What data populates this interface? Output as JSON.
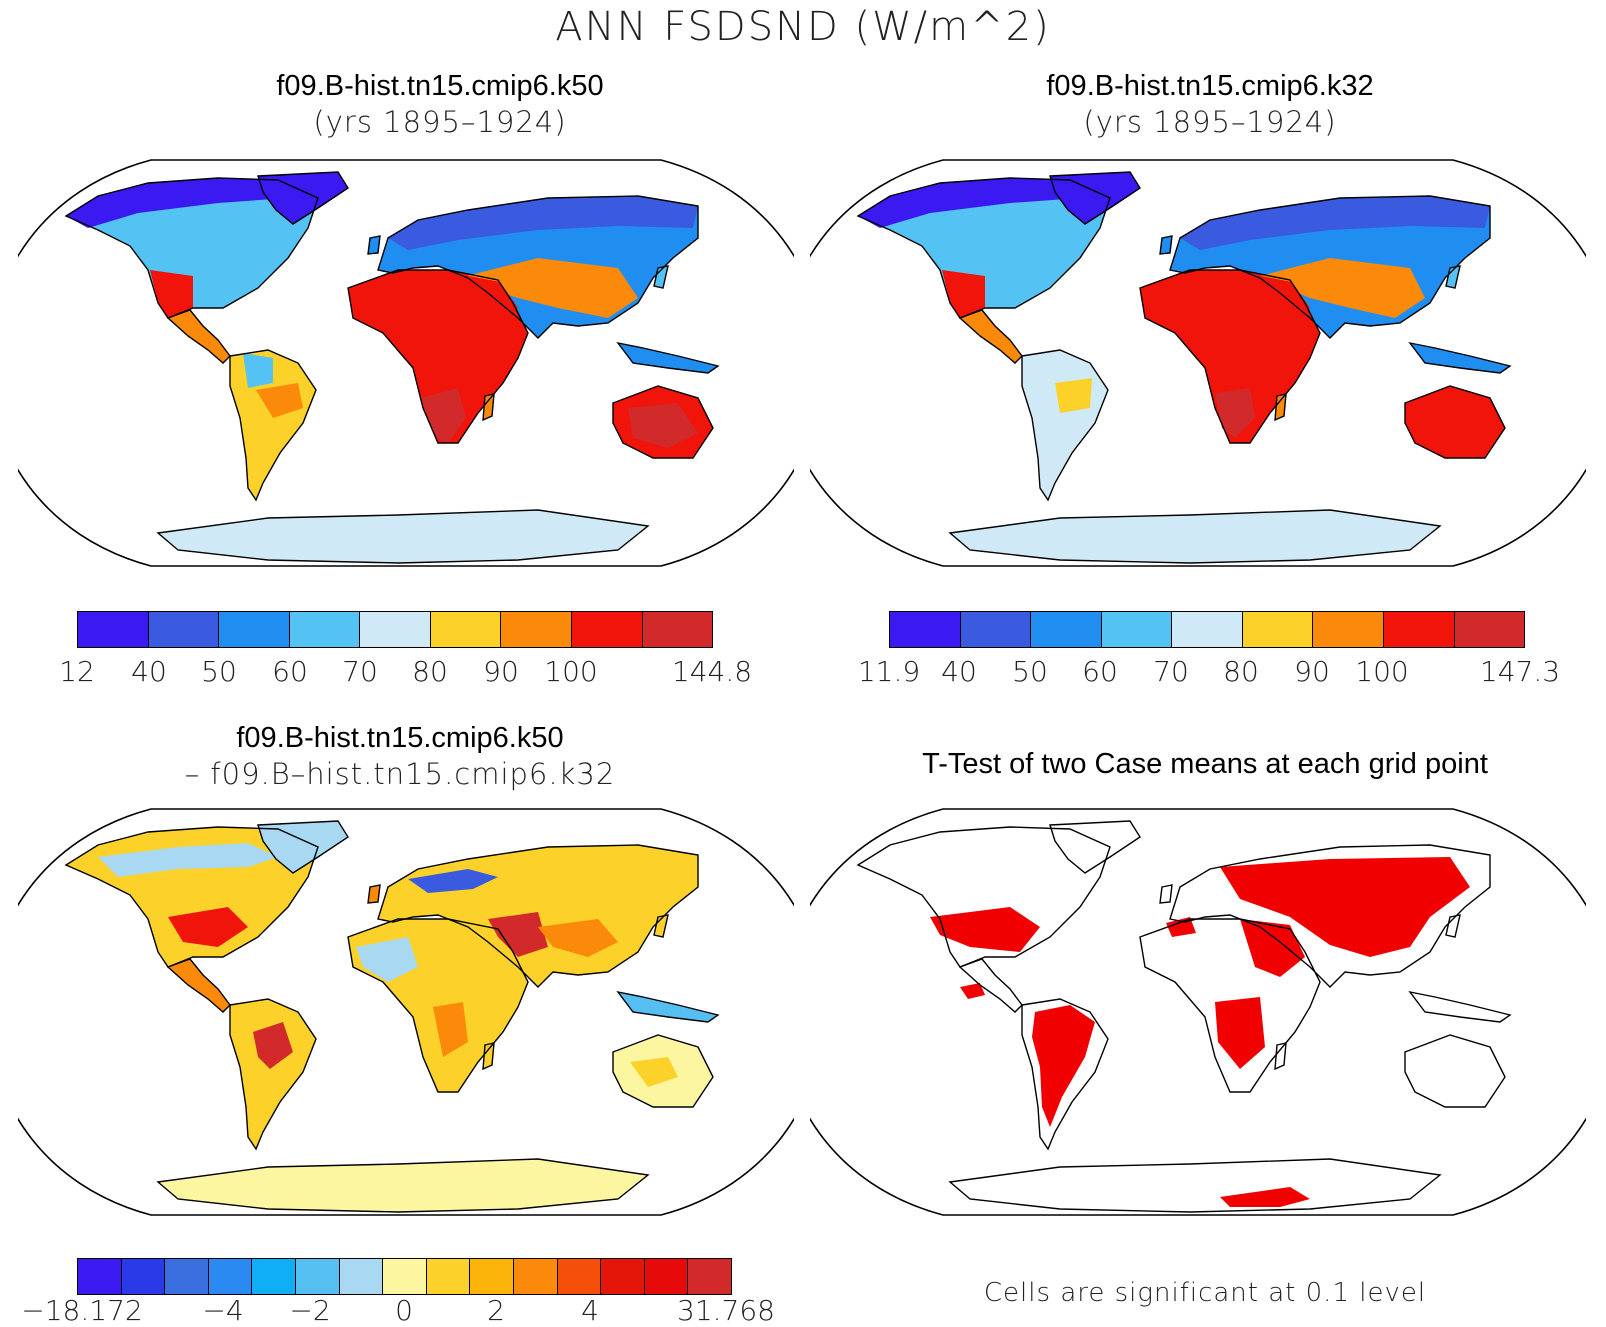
{
  "figure": {
    "title": "ANN FSDSND (W/m^2)"
  },
  "panels": [
    {
      "title_line1": "f09.B-hist.tn15.cmip6.k50",
      "title_line2": "(yrs 1895–1924)",
      "colorbar": {
        "colors": [
          "#3a1af0",
          "#3a5ae0",
          "#1f8ef0",
          "#54c2f2",
          "#cfe9f7",
          "#fcd22a",
          "#fb8a0a",
          "#f0140a",
          "#d22a2a"
        ],
        "labels": [
          "12",
          "40",
          "50",
          "60",
          "70",
          "80",
          "90",
          "100",
          "144.8"
        ]
      }
    },
    {
      "title_line1": "f09.B-hist.tn15.cmip6.k32",
      "title_line2": "(yrs 1895–1924)",
      "colorbar": {
        "colors": [
          "#3a1af0",
          "#3a5ae0",
          "#1f8ef0",
          "#54c2f2",
          "#cfe9f7",
          "#fcd22a",
          "#fb8a0a",
          "#f0140a",
          "#d22a2a"
        ],
        "labels": [
          "11.9",
          "40",
          "50",
          "60",
          "70",
          "80",
          "90",
          "100",
          "147.3"
        ]
      }
    },
    {
      "title_line1": "f09.B-hist.tn15.cmip6.k50",
      "title_line2": "– f09.B–hist.tn15.cmip6.k32",
      "colorbar": {
        "colors": [
          "#3a1af0",
          "#2a3ae8",
          "#3b6fe0",
          "#2a8af2",
          "#10aef5",
          "#54bff0",
          "#a9d8f2",
          "#fdf6a0",
          "#fcd22a",
          "#fcb40a",
          "#fb8a0a",
          "#f5500a",
          "#e4160a",
          "#e60a0a",
          "#d22a2a"
        ],
        "labels": [
          "−18.172",
          "−4",
          "−2",
          "0",
          "2",
          "4",
          "31.768"
        ]
      }
    },
    {
      "title_line1": "T-Test of two Case means at each grid point",
      "note": "Cells are significant at 0.1 level"
    }
  ],
  "legend": {
    "significant_color": "#f00000"
  }
}
